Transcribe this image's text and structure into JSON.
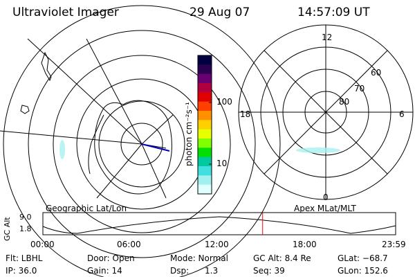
{
  "header": {
    "instrument": "Ultraviolet Imager",
    "date": "29 Aug 07",
    "time": "14:57:09 UT"
  },
  "colorbar": {
    "unit_label": "photon cm⁻²s⁻¹",
    "tick_100": "100",
    "tick_10": "10",
    "colors": [
      "#000040",
      "#2a0050",
      "#6a0070",
      "#b00040",
      "#e00000",
      "#ff4000",
      "#ff9000",
      "#ffd000",
      "#e8ff00",
      "#80ff00",
      "#00e000",
      "#00c8a0",
      "#40e0e0",
      "#a0f0f0",
      "#e0ffff"
    ]
  },
  "geo_panel": {
    "label": "Geographic Lat/Lon"
  },
  "mag_panel": {
    "label": "Apex MLat/MLT",
    "mlt_top": "12",
    "mlt_left": "18",
    "mlt_right": "6",
    "mlt_bottom": "0",
    "lat_60": "60",
    "lat_70": "70",
    "lat_80": "80"
  },
  "orbit_plot": {
    "ylabel": "GC Alt",
    "y_top": "9.0",
    "y_bottom": "1.8",
    "x_ticks": [
      "00:00",
      "06:00",
      "12:00",
      "18:00",
      "23:59"
    ],
    "current_time_frac": 0.623,
    "marker_color": "#ff0000"
  },
  "status": {
    "flt": "Flt: LBHL",
    "door": "Door: Open",
    "mode": "Mode: Normal",
    "gc_alt": "GC Alt: 8.4 Re",
    "glat": "GLat: −68.7",
    "ip": "IP: 36.0",
    "gain": "Gain: 14",
    "dsp_label": "Dsp:",
    "dsp_value": "1.3",
    "seq": "Seq: 39",
    "glon": "GLon: 152.6"
  }
}
